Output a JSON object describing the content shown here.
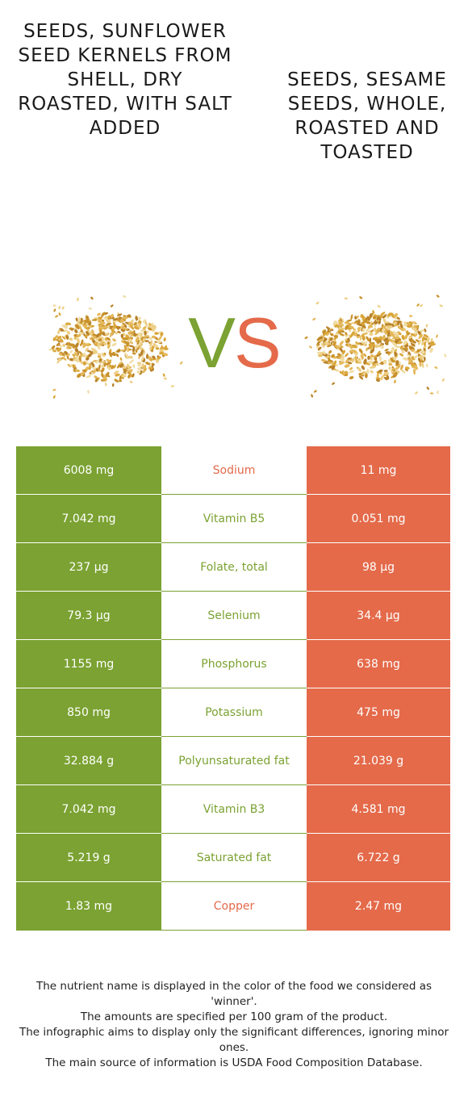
{
  "left_food": {
    "title": "Seeds, sunflower seed kernels from shell, dry roasted, with salt added",
    "color": "#7ba232"
  },
  "right_food": {
    "title": "Seeds, sesame seeds, whole, roasted and toasted",
    "color": "#e46a4a"
  },
  "vs": {
    "v": "V",
    "s": "S"
  },
  "rows": [
    {
      "nutrient": "Sodium",
      "left": "6008 mg",
      "right": "11 mg",
      "winner": "right"
    },
    {
      "nutrient": "Vitamin B5",
      "left": "7.042 mg",
      "right": "0.051 mg",
      "winner": "left"
    },
    {
      "nutrient": "Folate, total",
      "left": "237 µg",
      "right": "98 µg",
      "winner": "left"
    },
    {
      "nutrient": "Selenium",
      "left": "79.3 µg",
      "right": "34.4 µg",
      "winner": "left"
    },
    {
      "nutrient": "Phosphorus",
      "left": "1155 mg",
      "right": "638 mg",
      "winner": "left"
    },
    {
      "nutrient": "Potassium",
      "left": "850 mg",
      "right": "475 mg",
      "winner": "left"
    },
    {
      "nutrient": "Polyunsaturated fat",
      "left": "32.884 g",
      "right": "21.039 g",
      "winner": "left"
    },
    {
      "nutrient": "Vitamin B3",
      "left": "7.042 mg",
      "right": "4.581 mg",
      "winner": "left"
    },
    {
      "nutrient": "Saturated fat",
      "left": "5.219 g",
      "right": "6.722 g",
      "winner": "left"
    },
    {
      "nutrient": "Copper",
      "left": "1.83 mg",
      "right": "2.47 mg",
      "winner": "right"
    }
  ],
  "footer": {
    "line1": "The nutrient name is displayed in the color of the food we considered as 'winner'.",
    "line2": "The amounts are specified per 100 gram of the product.",
    "line3": "The infographic aims to display only the significant differences, ignoring minor ones.",
    "line4": "The main source of information is USDA Food Composition Database."
  }
}
